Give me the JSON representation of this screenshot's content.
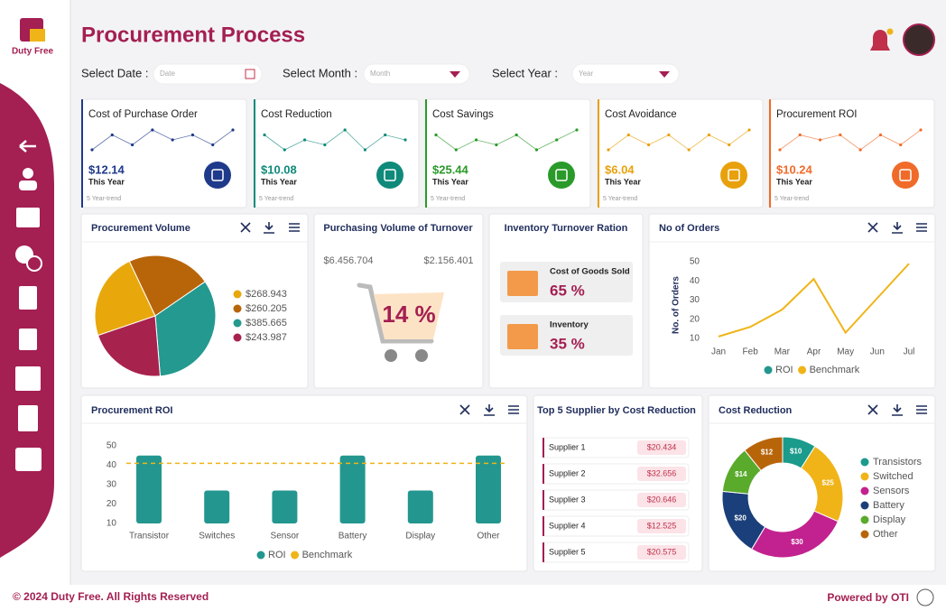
{
  "brand": {
    "name": "Duty Free"
  },
  "header": {
    "title": "Procurement Process"
  },
  "filters": [
    {
      "label": "Select Date :",
      "placeholder": "Date"
    },
    {
      "label": "Select Month :",
      "placeholder": "Month"
    },
    {
      "label": "Select Year :",
      "placeholder": "Year"
    }
  ],
  "kpis": [
    {
      "title": "Cost of Purchase Order",
      "value": "$12.14",
      "period": "This Year",
      "note": "5 Year-trend",
      "color": "#1f3a8a",
      "trend": [
        3,
        6,
        4,
        7,
        5,
        6,
        4,
        7
      ]
    },
    {
      "title": "Cost Reduction",
      "value": "$10.08",
      "period": "This Year",
      "note": "5 Year-trend",
      "color": "#0f8a7a",
      "trend": [
        6,
        3,
        5,
        4,
        7,
        3,
        6,
        5
      ]
    },
    {
      "title": "Cost Savings",
      "value": "$25.44",
      "period": "This Year",
      "note": "5 Year-trend",
      "color": "#2a9a2a",
      "trend": [
        6,
        3,
        5,
        4,
        6,
        3,
        5,
        7
      ]
    },
    {
      "title": "Cost Avoidance",
      "value": "$6.04",
      "period": "This Year",
      "note": "5 Year-trend",
      "color": "#e8a10c",
      "trend": [
        3,
        6,
        4,
        6,
        3,
        6,
        4,
        7
      ]
    },
    {
      "title": "Procurement ROI",
      "value": "$10.24",
      "period": "This Year",
      "note": "5 Year-trend",
      "color": "#f06b2a",
      "trend": [
        3,
        6,
        5,
        6,
        3,
        6,
        4,
        7
      ]
    }
  ],
  "chart_data": [
    {
      "type": "pie",
      "title": "Procurement Volume",
      "values": [
        268.943,
        260.205,
        385.665,
        243.987
      ],
      "value_labels": [
        "$268.943",
        "$260.205",
        "$385.665",
        "$243.987"
      ],
      "colors": [
        "#e8a80c",
        "#b8650a",
        "#24998f",
        "#a8224e"
      ]
    },
    {
      "type": "line",
      "title": "No of Orders",
      "ylabel": "No. of Orders",
      "categories": [
        "Jan",
        "Feb",
        "Mar",
        "Apr",
        "May",
        "Jun",
        "Jul"
      ],
      "ylim": [
        10,
        50
      ],
      "yticks": [
        10,
        20,
        30,
        40,
        50
      ],
      "series": [
        {
          "name": "ROI",
          "color": "#23978f",
          "values": [
            null,
            null,
            null,
            null,
            null,
            null,
            null
          ]
        },
        {
          "name": "Benchmark",
          "color": "#f0b418",
          "values": [
            11,
            16,
            25,
            41,
            13,
            31,
            49
          ]
        }
      ]
    },
    {
      "type": "bar",
      "title": "Procurement ROI",
      "categories": [
        "Transistor",
        "Switches",
        "Sensor",
        "Battery",
        "Display",
        "Other"
      ],
      "ylim": [
        10,
        50
      ],
      "yticks": [
        10,
        20,
        30,
        40,
        50
      ],
      "series": [
        {
          "name": "ROI",
          "color": "#23978f",
          "values": [
            45,
            27,
            27,
            45,
            27,
            45
          ]
        }
      ],
      "benchmark": {
        "name": "Benchmark",
        "value": 41,
        "color": "#f0b418"
      }
    },
    {
      "type": "pie",
      "donut": true,
      "title": "Cost Reduction",
      "labels": [
        "Transistors",
        "Switched",
        "Sensors",
        "Battery",
        "Display",
        "Other"
      ],
      "values": [
        10,
        25,
        30,
        20,
        14,
        12
      ],
      "value_labels": [
        "$10",
        "$25",
        "$30",
        "$20",
        "$14",
        "$12"
      ],
      "colors": [
        "#1a9b8c",
        "#f0b418",
        "#c2228f",
        "#1a3f7a",
        "#5aaa2c",
        "#b8650a"
      ]
    }
  ],
  "turnover": {
    "title": "Purchasing Volume of Turnover",
    "left": "$6.456.704",
    "right": "$2.156.401",
    "percent": "14 %"
  },
  "inventory": {
    "title": "Inventory Turnover Ration",
    "items": [
      {
        "label": "Cost of Goods Sold",
        "value": "65 %"
      },
      {
        "label": "Inventory",
        "value": "35 %"
      }
    ]
  },
  "suppliers": {
    "title": "Top 5 Supplier by Cost Reduction",
    "rows": [
      {
        "name": "Supplier 1",
        "value": "$20.434"
      },
      {
        "name": "Supplier 2",
        "value": "$32.656"
      },
      {
        "name": "Supplier 3",
        "value": "$20.646"
      },
      {
        "name": "Supplier 4",
        "value": "$12.525"
      },
      {
        "name": "Supplier 5",
        "value": "$20.575"
      }
    ]
  },
  "footer": {
    "copyright": "© 2024 Duty Free. All Rights Reserved",
    "powered": "Powered by OTI"
  }
}
